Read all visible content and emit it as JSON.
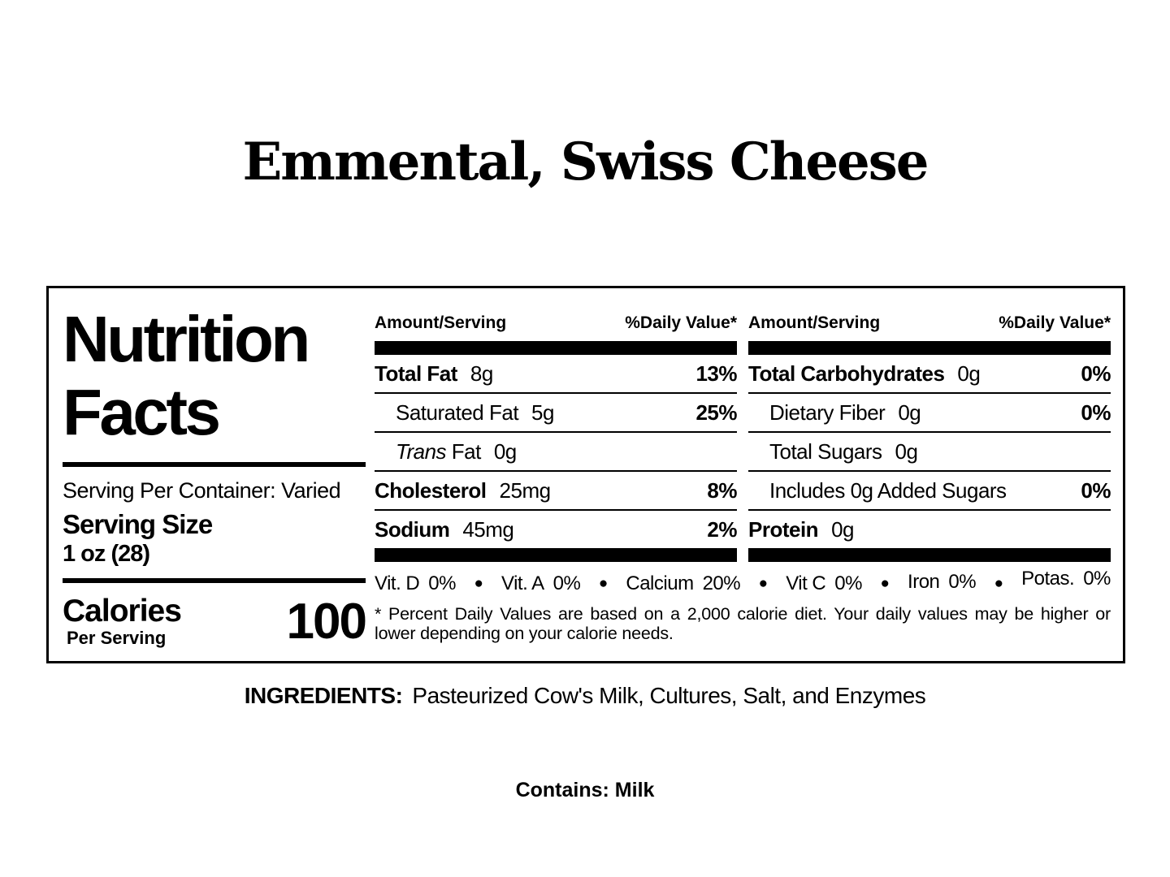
{
  "colors": {
    "text": "#000000",
    "background": "#ffffff"
  },
  "title": "Emmental, Swiss Cheese",
  "label": {
    "heading_line1": "Nutrition",
    "heading_line2": "Facts",
    "serving_per_container": "Serving Per Container: Varied",
    "serving_size_label": "Serving Size",
    "serving_size_value": "1 oz (28)",
    "calories_label": "Calories",
    "calories_sublabel": "Per Serving",
    "calories_value": "100",
    "header_amount": "Amount/Serving",
    "header_dv": "%Daily Value*",
    "columns": {
      "mid": {
        "rows": [
          {
            "name": "Total Fat",
            "bold": true,
            "indent": false,
            "amount": "8g",
            "dv": "13%"
          },
          {
            "name": "Saturated Fat",
            "bold": false,
            "indent": true,
            "amount": "5g",
            "dv": "25%"
          },
          {
            "name": "Fat",
            "name_italic": "Trans",
            "bold": false,
            "indent": true,
            "amount": "0g",
            "dv": ""
          },
          {
            "name": "Cholesterol",
            "bold": true,
            "indent": false,
            "amount": "25mg",
            "dv": "8%"
          },
          {
            "name": "Sodium",
            "bold": true,
            "indent": false,
            "amount": "45mg",
            "dv": "2%"
          }
        ]
      },
      "right": {
        "rows": [
          {
            "name": "Total Carbohydrates",
            "bold": true,
            "indent": false,
            "amount": "0g",
            "dv": "0%"
          },
          {
            "name": "Dietary Fiber",
            "bold": false,
            "indent": true,
            "amount": "0g",
            "dv": "0%"
          },
          {
            "name": "Total Sugars",
            "bold": false,
            "indent": true,
            "amount": "0g",
            "dv": ""
          },
          {
            "name": "Includes 0g Added Sugars",
            "bold": false,
            "indent": true,
            "amount": "",
            "dv": "0%"
          },
          {
            "name": "Protein",
            "bold": true,
            "indent": false,
            "amount": "0g",
            "dv": ""
          }
        ]
      }
    },
    "micronutrients": [
      {
        "name": "Vit. D",
        "value": "0%"
      },
      {
        "name": "Vit. A",
        "value": "0%"
      },
      {
        "name": "Calcium",
        "value": "20%"
      },
      {
        "name": "Vit C",
        "value": "0%"
      },
      {
        "name": "Iron",
        "value": "0%"
      },
      {
        "name": "Potas.",
        "value": "0%"
      }
    ],
    "footnote": "* Percent Daily Values are based on a 2,000 calorie diet. Your daily values may be higher or lower depending on your calorie needs."
  },
  "ingredients": {
    "label": "INGREDIENTS:",
    "text": "Pasteurized Cow's Milk, Cultures, Salt, and Enzymes"
  },
  "contains": "Contains: Milk"
}
